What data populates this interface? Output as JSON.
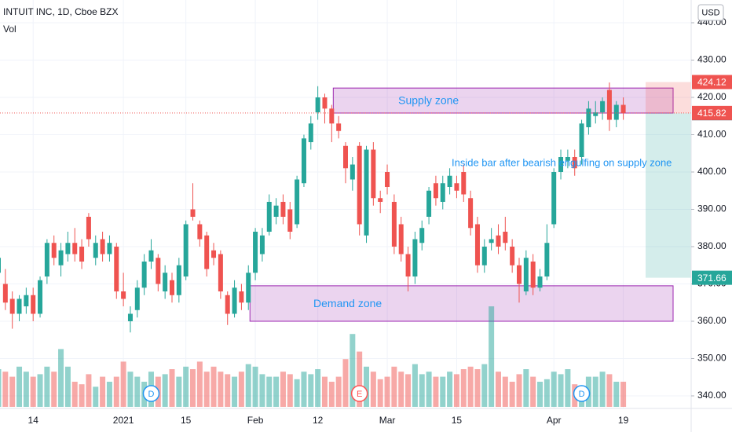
{
  "chart_data": {
    "type": "candlestick",
    "title": "INTUIT INC, 1D, Cboe BZX",
    "volume_title": "Vol",
    "currency": "USD",
    "up_color": "#26a69a",
    "down_color": "#ef5350",
    "categories": [
      null,
      null,
      null,
      null,
      null,
      "14",
      null,
      null,
      null,
      null,
      null,
      null,
      null,
      null,
      null,
      null,
      null,
      null,
      "2021",
      null,
      null,
      null,
      null,
      null,
      null,
      null,
      null,
      "15",
      null,
      null,
      null,
      null,
      null,
      null,
      null,
      null,
      null,
      "Feb",
      null,
      null,
      null,
      null,
      null,
      null,
      null,
      null,
      "12",
      null,
      null,
      null,
      null,
      null,
      null,
      null,
      null,
      null,
      "Mar",
      null,
      null,
      null,
      null,
      null,
      null,
      null,
      null,
      null,
      "15",
      null,
      null,
      null,
      null,
      null,
      null,
      null,
      null,
      null,
      null,
      null,
      null,
      null,
      "Apr",
      null,
      null,
      null,
      null,
      null,
      null,
      null,
      null,
      null,
      "19"
    ],
    "open": [
      373,
      370,
      366,
      362,
      364,
      367,
      362,
      372,
      381,
      375,
      378,
      381,
      380,
      388,
      377,
      382,
      378,
      380,
      368,
      360,
      363,
      369,
      376,
      377,
      368,
      371,
      367,
      372,
      390,
      386,
      383,
      379,
      378,
      367,
      362,
      368,
      365,
      373,
      378,
      384,
      388,
      392,
      390,
      386,
      397,
      408,
      416,
      420,
      417,
      413,
      407,
      398,
      407,
      383,
      406,
      393,
      400,
      392,
      386,
      378,
      372,
      381,
      388,
      397,
      392,
      396,
      397,
      400,
      393,
      386,
      375,
      381,
      383,
      384,
      380,
      375,
      368,
      376,
      369,
      372,
      386,
      400,
      403,
      404,
      404,
      412,
      415,
      416,
      422,
      414,
      418
    ],
    "high": [
      379,
      374,
      368,
      367,
      369,
      369,
      372,
      382,
      383,
      381,
      384,
      385,
      382,
      389,
      383,
      384,
      383,
      381,
      373,
      364,
      371,
      378,
      382,
      378,
      375,
      373,
      377,
      387,
      397,
      387,
      384,
      381,
      379,
      368,
      371,
      370,
      375,
      385,
      385,
      394,
      393,
      394,
      392,
      399,
      410,
      415,
      423,
      421,
      418,
      415,
      408,
      404,
      408,
      407,
      408,
      395,
      402,
      394,
      388,
      380,
      384,
      387,
      396,
      399,
      399,
      401,
      399,
      402,
      395,
      388,
      382,
      385,
      386,
      388,
      382,
      377,
      379,
      378,
      374,
      386,
      401,
      406,
      406,
      406,
      414,
      419,
      419,
      420,
      424,
      419,
      420
    ],
    "low": [
      371,
      363,
      358,
      360,
      362,
      360,
      361,
      370,
      375,
      372,
      376,
      376,
      374,
      380,
      375,
      376,
      376,
      366,
      364,
      357,
      361,
      367,
      374,
      368,
      366,
      365,
      365,
      371,
      387,
      380,
      372,
      375,
      366,
      359,
      361,
      363,
      363,
      371,
      376,
      383,
      386,
      386,
      382,
      385,
      396,
      406,
      414,
      413,
      408,
      409,
      397,
      395,
      383,
      381,
      391,
      389,
      394,
      378,
      376,
      368,
      370,
      379,
      386,
      391,
      390,
      394,
      393,
      392,
      383,
      373,
      373,
      379,
      378,
      379,
      373,
      365,
      367,
      367,
      368,
      371,
      385,
      398,
      401,
      399,
      402,
      410,
      413,
      414,
      411,
      412,
      414
    ],
    "close": [
      377,
      365,
      362,
      366,
      367,
      362,
      371,
      381,
      377,
      379,
      381,
      378,
      376,
      382,
      381,
      378,
      381,
      368,
      366,
      362,
      369,
      376,
      379,
      370,
      373,
      367,
      375,
      386,
      388,
      382,
      374,
      377,
      368,
      362,
      369,
      365,
      373,
      384,
      383,
      392,
      391,
      388,
      384,
      398,
      409,
      413,
      420,
      417,
      413,
      411,
      401,
      402,
      386,
      406,
      393,
      392,
      396,
      380,
      378,
      372,
      382,
      385,
      395,
      393,
      397,
      399,
      395,
      394,
      385,
      375,
      380,
      382,
      380,
      381,
      375,
      370,
      377,
      369,
      372,
      381,
      400,
      404,
      404,
      401,
      413,
      417,
      416,
      419,
      414,
      418,
      415.82
    ],
    "volume": [
      1.5,
      1.4,
      1.2,
      1.6,
      1.4,
      1.2,
      1.3,
      1.6,
      1.4,
      2.3,
      1.6,
      1.0,
      0.9,
      1.3,
      0.8,
      1.2,
      1.0,
      1.2,
      1.8,
      1.4,
      1.2,
      1.0,
      1.4,
      1.2,
      1.3,
      1.5,
      1.2,
      1.6,
      1.5,
      1.8,
      1.4,
      1.6,
      1.4,
      1.3,
      1.2,
      1.4,
      1.7,
      1.6,
      1.3,
      1.2,
      1.2,
      1.4,
      1.3,
      1.1,
      1.4,
      1.3,
      1.5,
      1.2,
      1.0,
      1.2,
      1.9,
      2.9,
      2.2,
      1.6,
      1.4,
      1.1,
      1.2,
      1.6,
      1.4,
      1.3,
      1.7,
      1.3,
      1.4,
      1.2,
      1.2,
      1.4,
      1.3,
      1.5,
      1.6,
      1.5,
      1.7,
      4.0,
      1.4,
      1.2,
      1.0,
      1.3,
      1.5,
      1.2,
      1.0,
      1.1,
      1.4,
      1.3,
      1.5,
      0.9,
      0.7,
      1.2,
      1.2,
      1.4,
      1.3,
      1.0,
      1.0
    ],
    "ylim": [
      337,
      445
    ],
    "yticks": [
      {
        "value": 340,
        "label": "340.00"
      },
      {
        "value": 350,
        "label": "350.00"
      },
      {
        "value": 360,
        "label": "360.00"
      },
      {
        "value": 370,
        "label": "370.00"
      },
      {
        "value": 380,
        "label": "380.00"
      },
      {
        "value": 390,
        "label": "390.00"
      },
      {
        "value": 400,
        "label": "400.00"
      },
      {
        "value": 410,
        "label": "410.00"
      },
      {
        "value": 420,
        "label": "420.00"
      },
      {
        "value": 430,
        "label": "430.00"
      },
      {
        "value": 440,
        "label": "440.00"
      }
    ],
    "zones": [
      {
        "label": "Supply zone",
        "low": 415.8,
        "high": 422.5,
        "start": 48
      },
      {
        "label": "Demand zone",
        "low": 360,
        "high": 369.5,
        "start": 36
      }
    ],
    "annotation": "Inside bar after bearish engulfing on supply zone",
    "position": {
      "stop": 424.12,
      "entry": 415.75,
      "target": 371.66
    },
    "events": [
      {
        "label": "D",
        "at": 22
      },
      {
        "label": "E",
        "at": 52
      },
      {
        "label": "D",
        "at": 84
      }
    ],
    "grid": true
  }
}
